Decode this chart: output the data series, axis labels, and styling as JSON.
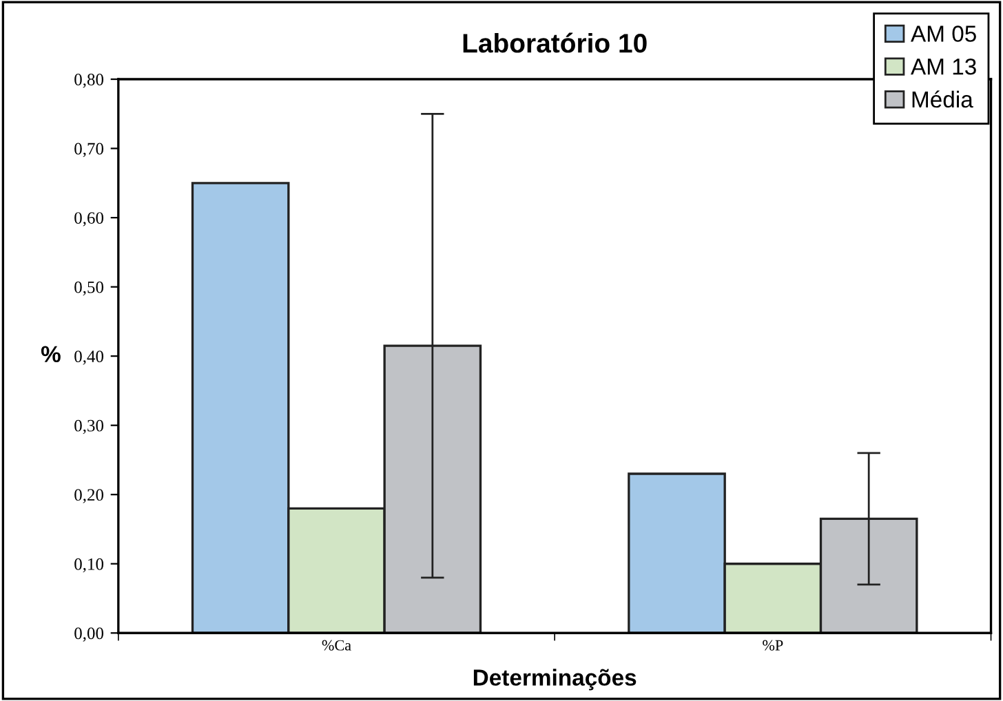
{
  "chart_data": {
    "type": "bar",
    "title": "Laboratório 10",
    "xlabel": "Determinações",
    "ylabel": "%",
    "categories": [
      "%Ca",
      "%P"
    ],
    "series": [
      {
        "name": "AM 05",
        "color": "#a3c8e8",
        "values": [
          0.65,
          0.23
        ]
      },
      {
        "name": "AM 13",
        "color": "#d2e5c5",
        "values": [
          0.18,
          0.1
        ]
      },
      {
        "name": "Média",
        "color": "#c0c2c6",
        "values": [
          0.415,
          0.165
        ],
        "errors": [
          [
            0.08,
            0.75
          ],
          [
            0.07,
            0.26
          ]
        ]
      }
    ],
    "ylim": [
      0,
      0.8
    ],
    "yticks": [
      {
        "value": 0,
        "label": "0,00"
      },
      {
        "value": 0.1,
        "label": "0,10"
      },
      {
        "value": 0.2,
        "label": "0,20"
      },
      {
        "value": 0.3,
        "label": "0,30"
      },
      {
        "value": 0.4,
        "label": "0,40"
      },
      {
        "value": 0.5,
        "label": "0,50"
      },
      {
        "value": 0.6,
        "label": "0,60"
      },
      {
        "value": 0.7,
        "label": "0,70"
      },
      {
        "value": 0.8,
        "label": "0,80"
      }
    ],
    "grid": false,
    "legend": "top right"
  }
}
